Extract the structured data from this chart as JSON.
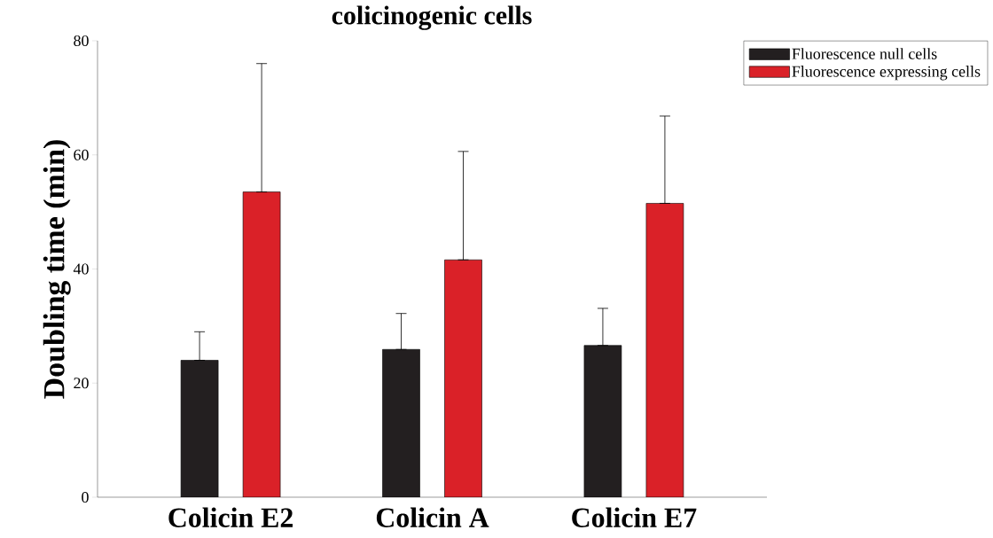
{
  "chart_data": {
    "type": "bar",
    "title": "colicinogenic cells",
    "ylabel": "Doubling time (min)",
    "categories": [
      "Colicin E2",
      "Colicin A",
      "Colicin E7"
    ],
    "series": [
      {
        "name": "Fluorescence null cells",
        "color": "#231f20",
        "values": [
          24.0,
          25.9,
          26.6
        ],
        "errors": [
          [
            24.0,
            29.0
          ],
          [
            25.9,
            32.2
          ],
          [
            26.6,
            33.1
          ]
        ]
      },
      {
        "name": "Fluorescence expressing cells",
        "color": "#da2128",
        "values": [
          53.5,
          41.6,
          51.5
        ],
        "errors": [
          [
            53.5,
            76.0
          ],
          [
            41.6,
            60.6
          ],
          [
            51.5,
            66.8
          ]
        ]
      }
    ],
    "ylim": [
      0,
      80
    ],
    "yticks": [
      0,
      20,
      40,
      60,
      80
    ],
    "legend": "top right",
    "grid": false
  }
}
